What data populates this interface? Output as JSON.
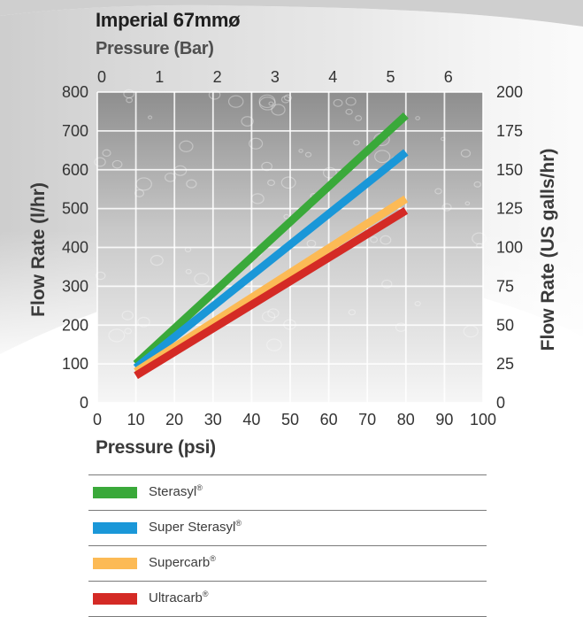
{
  "chart_data": {
    "type": "line",
    "title": "Imperial 67mmø",
    "x_axis": {
      "label": "Pressure (psi)",
      "ticks": [
        0,
        10,
        20,
        30,
        40,
        50,
        60,
        70,
        80,
        90,
        100
      ],
      "range": [
        0,
        100
      ]
    },
    "x_axis_top": {
      "label": "Pressure (Bar)",
      "ticks": [
        0,
        1,
        2,
        3,
        4,
        5,
        6
      ]
    },
    "y_axis_left": {
      "label": "Flow Rate (l/hr)",
      "ticks": [
        0,
        100,
        200,
        300,
        400,
        500,
        600,
        700,
        800
      ],
      "range": [
        0,
        800
      ]
    },
    "y_axis_right": {
      "label": "Flow Rate (US galls/hr)",
      "ticks": [
        0,
        25,
        50,
        75,
        100,
        125,
        150,
        175,
        200
      ]
    },
    "grid": true,
    "legend_position": "bottom",
    "series": [
      {
        "name": "Sterasyl",
        "color": "#3aa93a",
        "x": [
          10,
          80
        ],
        "y": [
          100,
          740
        ]
      },
      {
        "name": "Super Sterasyl",
        "color": "#1a97d8",
        "x": [
          10,
          80
        ],
        "y": [
          90,
          645
        ]
      },
      {
        "name": "Supercarb",
        "color": "#fcba55",
        "x": [
          10,
          80
        ],
        "y": [
          80,
          525
        ]
      },
      {
        "name": "Ultracarb",
        "color": "#d42a25",
        "x": [
          10,
          80
        ],
        "y": [
          70,
          495
        ]
      }
    ]
  }
}
